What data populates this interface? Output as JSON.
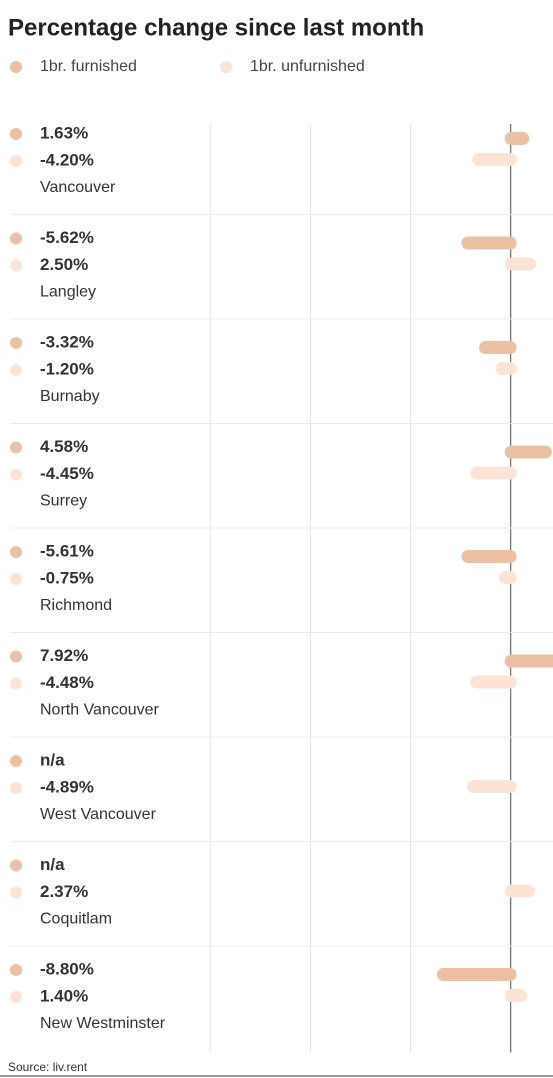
{
  "chart_data": {
    "type": "bar",
    "orientation": "horizontal",
    "title": "Percentage change since last month",
    "categories": [
      "Vancouver",
      "Langley",
      "Burnaby",
      "Surrey",
      "Richmond",
      "North Vancouver",
      "West Vancouver",
      "Coquitlam",
      "New Westminster"
    ],
    "series": [
      {
        "name": "1br. furnished",
        "color": "#ecc0a3",
        "values": [
          1.63,
          -5.62,
          -3.32,
          4.58,
          -5.61,
          7.92,
          null,
          null,
          -8.8
        ],
        "value_labels": [
          "1.63%",
          "-5.62%",
          "-3.32%",
          "4.58%",
          "-5.61%",
          "7.92%",
          "n/a",
          "n/a",
          "-8.80%"
        ]
      },
      {
        "name": "1br. unfurnished",
        "color": "#fde3d3",
        "values": [
          -4.2,
          2.5,
          -1.2,
          -4.45,
          -0.75,
          -4.48,
          -4.89,
          2.37,
          1.4
        ],
        "value_labels": [
          "-4.20%",
          "2.50%",
          "-1.20%",
          "-4.45%",
          "-0.75%",
          "-4.48%",
          "-4.89%",
          "2.37%",
          "1.40%"
        ]
      }
    ],
    "xlim": [
      -65,
      5.5
    ],
    "xticks": [
      -39,
      -26,
      -13,
      0
    ],
    "grid": true,
    "source": "Source: liv.rent"
  }
}
